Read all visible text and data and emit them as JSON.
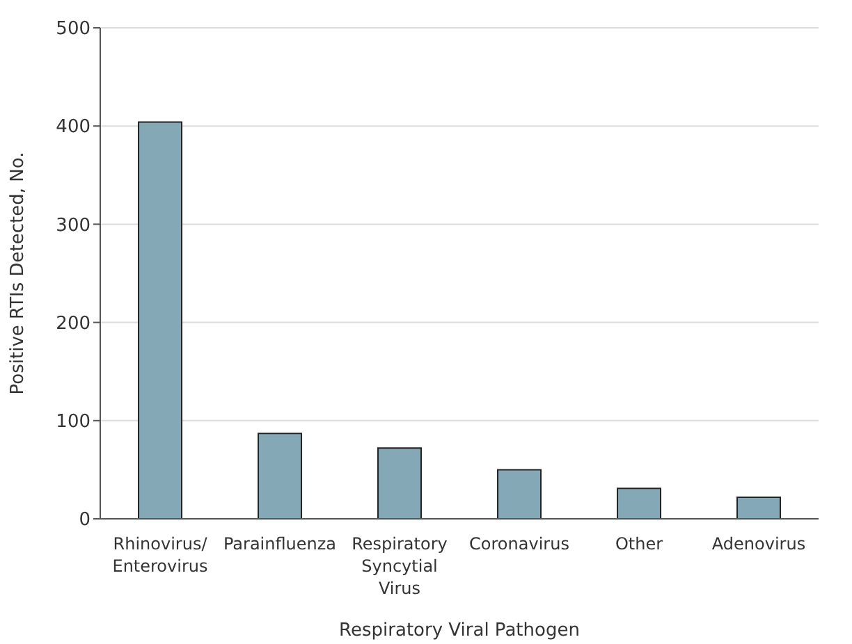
{
  "chart_data": {
    "type": "bar",
    "xlabel": "Respiratory Viral Pathogen",
    "ylabel": "Positive RTIs Detected, No.",
    "categories": [
      "Rhinovirus/ Enterovirus",
      "Parainfluenza",
      "Respiratory Syncytial Virus",
      "Coronavirus",
      "Other",
      "Adenovirus"
    ],
    "values": [
      404,
      87,
      72,
      50,
      31,
      22
    ],
    "color": "#84a8b5",
    "ylim": [
      0,
      500
    ],
    "yticks": [
      0,
      100,
      200,
      300,
      400,
      500
    ],
    "grid": "y"
  }
}
